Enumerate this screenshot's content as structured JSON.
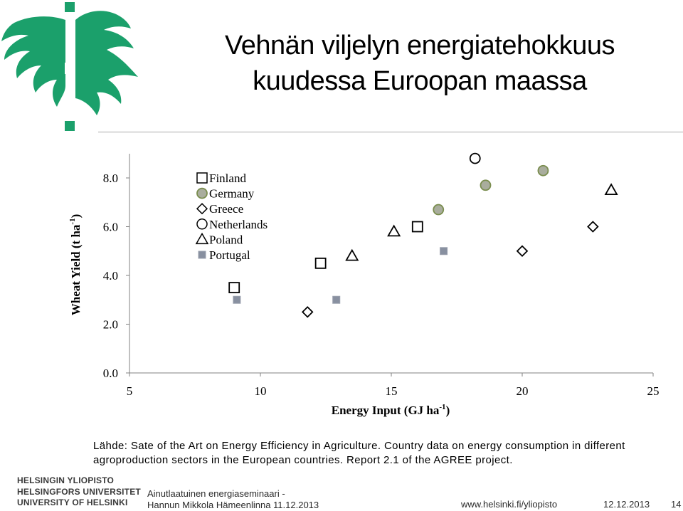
{
  "title": {
    "line1": "Vehnän viljelyn energiatehokkuus",
    "line2": "kuudessa Euroopan maassa"
  },
  "colors": {
    "logo": "#1ba06b",
    "germany_fill": "#a9ad9d",
    "germany_edge": "#7a8d4e",
    "portugal_fill": "#8890a0",
    "axis": "#808080"
  },
  "chart_data": {
    "type": "scatter",
    "xlabel": "Energy Input (GJ ha",
    "xlabel_sup": "-1",
    "xlabel_end": ")",
    "ylabel": "Wheat Yield (t ha",
    "ylabel_sup": "-1",
    "ylabel_end": ")",
    "xlim": [
      5,
      25
    ],
    "ylim": [
      0,
      8.8
    ],
    "xticks": [
      5,
      10,
      15,
      20,
      25
    ],
    "xtick_labels": [
      "5",
      "10",
      "15",
      "20",
      "25"
    ],
    "yticks": [
      0,
      2,
      4,
      6,
      8
    ],
    "ytick_labels": [
      "0.0",
      "2.0",
      "4.0",
      "6.0",
      "8.0"
    ],
    "legend_position": "top-left",
    "series": [
      {
        "name": "Finland",
        "marker": "open-square",
        "points": [
          [
            9.0,
            3.5
          ],
          [
            12.3,
            4.5
          ],
          [
            16.0,
            6.0
          ]
        ]
      },
      {
        "name": "Germany",
        "marker": "filled-circle",
        "points": [
          [
            16.8,
            6.7
          ],
          [
            18.6,
            7.7
          ],
          [
            20.8,
            8.3
          ]
        ]
      },
      {
        "name": "Greece",
        "marker": "open-diamond",
        "points": [
          [
            11.8,
            2.5
          ],
          [
            20.0,
            5.0
          ],
          [
            22.7,
            6.0
          ]
        ]
      },
      {
        "name": "Netherlands",
        "marker": "open-circle",
        "points": [
          [
            18.2,
            8.8
          ]
        ]
      },
      {
        "name": "Poland",
        "marker": "open-triangle",
        "points": [
          [
            13.5,
            4.8
          ],
          [
            15.1,
            5.8
          ],
          [
            23.4,
            7.5
          ]
        ]
      },
      {
        "name": "Portugal",
        "marker": "small-filled-square",
        "points": [
          [
            9.1,
            3.0
          ],
          [
            12.9,
            3.0
          ],
          [
            17.0,
            5.0
          ]
        ]
      }
    ]
  },
  "source": {
    "text": "Lähde: Sate of the Art on Energy Efficiency in Agriculture. Country data on energy consumption in different agroproduction sectors in the European countries. Report 2.1 of the AGREE project."
  },
  "footer": {
    "uni_fi": "HELSINGIN YLIOPISTO",
    "uni_sv": "HELSINGFORS UNIVERSITET",
    "uni_en": "UNIVERSITY OF HELSINKI",
    "seminar_line1": "Ainutlaatuinen energiaseminaari -",
    "seminar_line2": "Hannun Mikkola Hämeenlinna 11.12.2013",
    "url": "www.helsinki.fi/yliopisto",
    "date": "12.12.2013",
    "page": "14"
  }
}
